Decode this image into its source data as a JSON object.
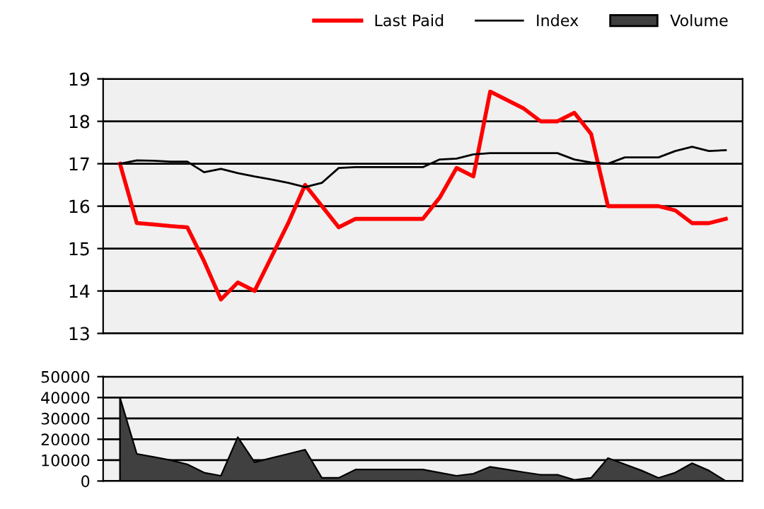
{
  "chart_data": [
    {
      "type": "line",
      "categories": [
        null,
        null,
        null,
        null,
        null,
        null,
        null,
        null,
        null,
        null,
        null,
        null,
        null,
        null,
        null,
        null,
        null,
        null,
        null,
        null,
        null,
        null,
        null,
        null,
        null,
        null,
        null,
        null,
        null,
        null,
        null,
        null,
        null,
        null,
        null,
        null,
        null
      ],
      "series": [
        {
          "name": "Last Paid",
          "color": "#ff0000",
          "values": [
            17.0,
            15.6,
            15.57,
            15.53,
            15.5,
            14.7,
            13.8,
            14.2,
            14.0,
            14.8,
            15.6,
            16.5,
            16.0,
            15.5,
            15.7,
            15.7,
            15.7,
            15.7,
            15.7,
            16.2,
            16.9,
            16.7,
            18.7,
            18.5,
            18.3,
            18.0,
            18.0,
            18.2,
            17.7,
            16.0,
            16.0,
            16.0,
            16.0,
            15.9,
            15.6,
            15.6,
            15.7
          ]
        },
        {
          "name": "Index",
          "color": "#000000",
          "values": [
            17.0,
            17.08,
            17.07,
            17.05,
            17.05,
            16.8,
            16.88,
            16.78,
            16.7,
            16.63,
            16.55,
            16.45,
            16.55,
            16.9,
            16.92,
            16.92,
            16.92,
            16.92,
            16.92,
            17.1,
            17.12,
            17.22,
            17.25,
            17.25,
            17.25,
            17.25,
            17.25,
            17.1,
            17.03,
            17.0,
            17.15,
            17.15,
            17.15,
            17.3,
            17.4,
            17.3,
            17.32
          ]
        }
      ],
      "ylim": [
        13,
        19
      ],
      "yticks": [
        13,
        14,
        15,
        16,
        17,
        18,
        19
      ],
      "grid": "y",
      "legend": "top right",
      "tick_labels": "y"
    },
    {
      "type": "area",
      "categories": [
        null,
        null,
        null,
        null,
        null,
        null,
        null,
        null,
        null,
        null,
        null,
        null,
        null,
        null,
        null,
        null,
        null,
        null,
        null,
        null,
        null,
        null,
        null,
        null,
        null,
        null,
        null,
        null,
        null,
        null,
        null,
        null,
        null,
        null,
        null,
        null,
        null
      ],
      "series": [
        {
          "name": "Volume",
          "color": "#404040",
          "values": [
            40000,
            13000,
            11500,
            10000,
            8000,
            4000,
            2500,
            21000,
            9000,
            11000,
            13000,
            15000,
            1500,
            1500,
            5500,
            5500,
            5500,
            5500,
            5500,
            4000,
            2500,
            3500,
            6800,
            5500,
            4200,
            3000,
            3000,
            500,
            1500,
            11000,
            8000,
            5000,
            1500,
            4000,
            8500,
            5000,
            0
          ]
        }
      ],
      "ylim": [
        0,
        50000
      ],
      "yticks": [
        0,
        10000,
        20000,
        30000,
        40000,
        50000
      ],
      "grid": "y",
      "legend": "top right",
      "tick_labels": "y"
    }
  ]
}
